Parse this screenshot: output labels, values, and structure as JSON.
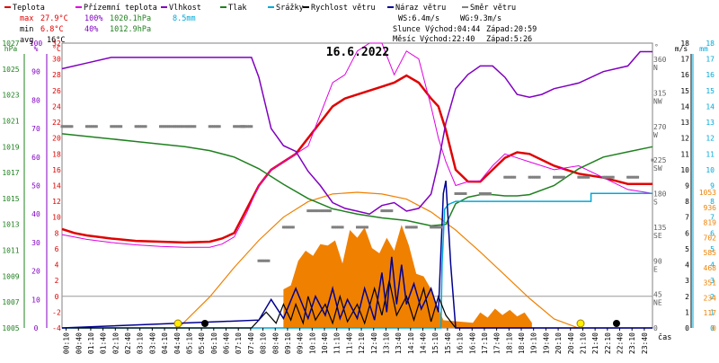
{
  "chart_data": {
    "type": "line",
    "title": "16.6.2022",
    "xlabel": "čas",
    "x_ticks": [
      "00:10",
      "00:40",
      "01:10",
      "01:40",
      "02:10",
      "02:40",
      "03:10",
      "03:40",
      "04:10",
      "04:40",
      "05:10",
      "05:40",
      "06:10",
      "06:40",
      "07:10",
      "07:40",
      "08:10",
      "08:40",
      "09:10",
      "09:40",
      "10:10",
      "10:40",
      "11:10",
      "11:40",
      "12:10",
      "12:40",
      "13:10",
      "13:40",
      "14:10",
      "14:40",
      "15:10",
      "15:40",
      "16:10",
      "16:40",
      "17:10",
      "17:40",
      "18:10",
      "18:40",
      "19:10",
      "19:40",
      "20:10",
      "20:40",
      "21:10",
      "21:40",
      "22:10",
      "22:40",
      "23:10",
      "23:40"
    ],
    "legend": [
      {
        "name": "Teplota",
        "color": "#e00000"
      },
      {
        "name": "Přízemní teplota",
        "color": "#e000e0"
      },
      {
        "name": "Vlhkost",
        "color": "#8000c0"
      },
      {
        "name": "Tlak",
        "color": "#208020"
      },
      {
        "name": "Srážky",
        "color": "#00a8d8"
      },
      {
        "name": "Rychlost větru",
        "color": "#000000"
      },
      {
        "name": "Náraz větru",
        "color": "#000090"
      },
      {
        "name": "Směr větru",
        "color": "#808080"
      }
    ],
    "axes": {
      "hPa": {
        "label": "hPa",
        "color": "#208020",
        "ticks": [
          "1005",
          "1007",
          "1009",
          "1011",
          "1013",
          "1015",
          "1017",
          "1019",
          "1021",
          "1023",
          "1025",
          "1027"
        ]
      },
      "pct": {
        "label": "%",
        "color": "#8000c0",
        "ticks": [
          "0",
          "10",
          "20",
          "30",
          "40",
          "50",
          "60",
          "70",
          "80",
          "90",
          "100"
        ]
      },
      "degC": {
        "label": "°C",
        "color": "#e00000",
        "ticks": [
          "-4",
          "-2",
          "0",
          "2",
          "4",
          "6",
          "8",
          "10",
          "12",
          "14",
          "16",
          "18",
          "20",
          "22",
          "24",
          "26",
          "28",
          "30",
          "32"
        ]
      },
      "dir": {
        "label": "°",
        "color": "#606060",
        "ticks": [
          [
            "360",
            "N"
          ],
          [
            "315",
            "NW"
          ],
          [
            "270",
            "W"
          ],
          [
            "225",
            "SW"
          ],
          [
            "180",
            "S"
          ],
          [
            "135",
            "SE"
          ],
          [
            "90",
            "E"
          ],
          [
            "45",
            "NE"
          ],
          [
            "0",
            ""
          ]
        ]
      },
      "ms": {
        "label": "m/s",
        "color": "#000000",
        "ticks": [
          "0",
          "1",
          "2",
          "3",
          "4",
          "5",
          "6",
          "7",
          "8",
          "9",
          "10",
          "11",
          "12",
          "13",
          "14",
          "15",
          "16",
          "17",
          "18"
        ]
      },
      "mm": {
        "label": "mm",
        "color": "#00a8d8",
        "ticks": [
          "0",
          "1",
          "2",
          "3",
          "4",
          "5",
          "6",
          "7",
          "8",
          "9",
          "10",
          "11",
          "12",
          "13",
          "14",
          "15",
          "16",
          "17",
          "18"
        ]
      },
      "wm2": {
        "label": "W/m²",
        "color": "#f08000",
        "ticks": [
          "0",
          "117",
          "234",
          "351",
          "468",
          "585",
          "702",
          "819",
          "936",
          "1053"
        ]
      }
    },
    "ylim_temp": [
      -4,
      32
    ],
    "stats": {
      "max": {
        "label": "max",
        "temp": "27.9°C",
        "hum": "100%",
        "press": "1020.1hPa",
        "rain": "8.5mm"
      },
      "min": {
        "label": "min",
        "temp": "6.8°C",
        "hum": "40%",
        "press": "1012.9hPa"
      },
      "avg": {
        "label": "avg",
        "temp": "16°C"
      }
    },
    "wind_info": {
      "ws": "WS:6.4m/s",
      "wg": "WG:9.3m/s"
    },
    "sun": {
      "label": "Slunce",
      "rise": "Východ:04:44",
      "set": "Západ:20:59"
    },
    "moon": {
      "label": "Měsíc",
      "rise": "Východ:22:40",
      "set": "Západ:5:26"
    },
    "series": [
      {
        "name": "Teplota",
        "x": [
          0,
          0.5,
          1,
          2,
          3,
          4,
          5,
          6,
          6.5,
          7,
          7.5,
          8,
          8.5,
          9,
          9.5,
          10,
          10.5,
          11,
          11.5,
          12,
          12.5,
          13,
          13.5,
          14,
          14.5,
          15,
          15.3,
          15.6,
          16,
          16.5,
          17,
          17.5,
          18,
          18.5,
          19,
          20,
          21,
          22,
          23,
          24
        ],
        "y": [
          8.5,
          8,
          7.7,
          7.3,
          7,
          6.9,
          6.8,
          6.9,
          7.3,
          8,
          11,
          14,
          16,
          17,
          18,
          20,
          22,
          24,
          25,
          25.5,
          26,
          26.5,
          27,
          27.9,
          27,
          25,
          24,
          21,
          16,
          14.5,
          14.5,
          16,
          17.5,
          18.2,
          18,
          16.5,
          15.5,
          15,
          14.2,
          14.2
        ]
      },
      {
        "name": "Přízemní teplota",
        "x": [
          0,
          1,
          2,
          3,
          4,
          5,
          6,
          6.5,
          7,
          7.5,
          8,
          8.5,
          9,
          10,
          10.5,
          11,
          11.5,
          12,
          12.5,
          13,
          13.5,
          14,
          14.5,
          15,
          15.3,
          15.6,
          16,
          16.5,
          17,
          17.5,
          18,
          18.5,
          19,
          20,
          21,
          22,
          23,
          24
        ],
        "y": [
          7.8,
          7.2,
          6.8,
          6.5,
          6.3,
          6.2,
          6.2,
          6.6,
          7.5,
          10.5,
          14,
          16,
          17,
          19,
          23,
          27,
          28,
          31,
          32,
          32,
          28,
          31,
          30,
          24,
          20,
          17,
          14,
          14.5,
          14.6,
          16.5,
          18,
          17.5,
          17,
          16,
          16.5,
          15,
          13.5,
          13
        ]
      },
      {
        "name": "Vlhkost",
        "x": [
          0,
          1,
          2,
          3,
          4,
          5,
          6,
          7,
          7.7,
          8,
          8.5,
          9,
          9.5,
          10,
          10.5,
          11,
          11.5,
          12,
          12.5,
          13,
          13.5,
          14,
          14.5,
          15,
          15.3,
          15.6,
          16,
          16.5,
          17,
          17.5,
          18,
          18.5,
          19,
          19.5,
          20,
          21,
          22,
          23,
          23.5,
          24
        ],
        "y": [
          91,
          93,
          95,
          95,
          95,
          95,
          95,
          95,
          95,
          88,
          70,
          64,
          62,
          55,
          50,
          44,
          42,
          41,
          40,
          43,
          44,
          41,
          42,
          47,
          58,
          72,
          84,
          89,
          92,
          92,
          88,
          82,
          81,
          82,
          84,
          86,
          90,
          92,
          97,
          97
        ]
      },
      {
        "name": "Tlak",
        "x": [
          0,
          1,
          2,
          3,
          4,
          5,
          6,
          7,
          8,
          9,
          10,
          11,
          12,
          13,
          14,
          15,
          15.6,
          16,
          16.5,
          17,
          17.5,
          18,
          18.5,
          19,
          20,
          21,
          22,
          23,
          24
        ],
        "y": [
          1020,
          1019.8,
          1019.6,
          1019.4,
          1019.2,
          1019,
          1018.7,
          1018.2,
          1017.3,
          1016.1,
          1015,
          1014.2,
          1013.8,
          1013.5,
          1013.3,
          1012.9,
          1013,
          1014.6,
          1015.1,
          1015.3,
          1015.3,
          1015.2,
          1015.2,
          1015.3,
          1016,
          1017.3,
          1018.2,
          1018.6,
          1019
        ]
      },
      {
        "name": "Srážky",
        "x": [
          0,
          15.4,
          15.45,
          15.55,
          15.7,
          16,
          21.5,
          21.5,
          24
        ],
        "y": [
          0,
          0,
          4,
          7.5,
          7.8,
          8,
          8,
          8.5,
          8.5
        ]
      },
      {
        "name": "Rychlost větru",
        "x": [
          0,
          7.7,
          8,
          8.3,
          8.7,
          9,
          9.3,
          9.5,
          9.8,
          10,
          10.3,
          10.7,
          11,
          11.3,
          11.6,
          12,
          12.3,
          12.7,
          13,
          13.3,
          13.6,
          14,
          14.3,
          14.7,
          15,
          15.3,
          15.6,
          16,
          24
        ],
        "y": [
          0,
          0,
          0.5,
          1,
          0.3,
          1.5,
          0.5,
          1.5,
          0.3,
          2,
          0.5,
          1.5,
          0.3,
          2,
          0.4,
          1.5,
          0.3,
          2.5,
          0.8,
          3,
          0.8,
          2,
          0.5,
          2.5,
          0.4,
          2,
          0.8,
          0,
          0
        ]
      },
      {
        "name": "Náraz větru",
        "x": [
          0,
          8,
          8.5,
          9,
          9.5,
          10,
          10.3,
          10.7,
          11,
          11.3,
          11.6,
          12,
          12.3,
          12.7,
          13,
          13.2,
          13.4,
          13.6,
          13.8,
          14,
          14.3,
          14.6,
          15,
          15.3,
          15.5,
          15.6,
          15.8,
          16,
          24
        ],
        "y": [
          0,
          0.5,
          1.8,
          0.6,
          2.5,
          0.6,
          2,
          0.8,
          2.5,
          0.6,
          1.8,
          0.6,
          2.5,
          0.5,
          3.5,
          1,
          4.5,
          1.5,
          4,
          1.5,
          2.8,
          1.2,
          2.5,
          1,
          8.5,
          9.3,
          4,
          0,
          0
        ]
      },
      {
        "name": "Směr větru",
        "x": [
          0,
          1,
          2,
          3,
          4,
          4.5,
          5,
          6,
          7,
          7.3,
          8,
          9,
          10,
          10.5,
          11,
          12,
          13,
          14,
          15,
          16,
          17,
          18,
          19,
          20,
          21,
          22,
          23,
          24
        ],
        "y": [
          270,
          270,
          270,
          270,
          270,
          270,
          270,
          270,
          270,
          270,
          90,
          135,
          157,
          157,
          135,
          135,
          157,
          135,
          135,
          180,
          180,
          202,
          202,
          202,
          202,
          202,
          202,
          225
        ]
      }
    ],
    "solar": {
      "name": "Sluneční záření",
      "color": "#f08000",
      "x": [
        4.73,
        6,
        7,
        8,
        9,
        10,
        11,
        12,
        13,
        14,
        15,
        16,
        17,
        18,
        19,
        20,
        20.98
      ],
      "y": [
        0,
        240,
        470,
        680,
        860,
        980,
        1040,
        1053,
        1040,
        1000,
        900,
        760,
        590,
        410,
        230,
        70,
        0
      ]
    },
    "solar_measured": {
      "x": [
        9,
        9.3,
        9.6,
        9.9,
        10.2,
        10.5,
        10.8,
        11.1,
        11.4,
        11.7,
        12,
        12.3,
        12.6,
        12.9,
        13.2,
        13.5,
        13.8,
        14.1,
        14.4,
        14.7,
        15,
        15.3,
        15.5,
        16.7,
        17,
        17.3,
        17.6,
        17.9,
        18.2,
        18.5,
        18.8,
        19.1
      ],
      "y": [
        300,
        330,
        520,
        600,
        560,
        650,
        640,
        680,
        500,
        760,
        700,
        780,
        620,
        580,
        700,
        600,
        800,
        640,
        420,
        400,
        300,
        150,
        60,
        40,
        120,
        80,
        150,
        100,
        140,
        90,
        120,
        40
      ]
    }
  }
}
